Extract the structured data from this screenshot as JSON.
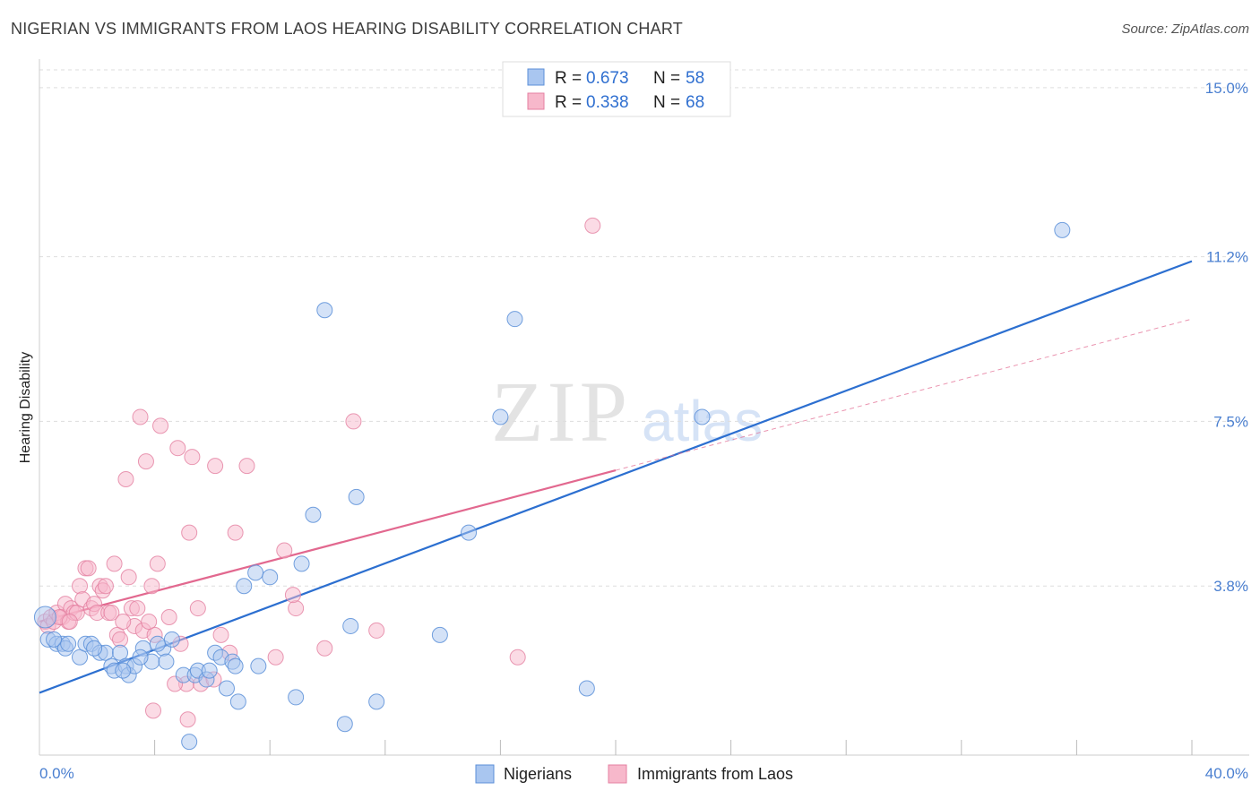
{
  "title": "NIGERIAN VS IMMIGRANTS FROM LAOS HEARING DISABILITY CORRELATION CHART",
  "source": "Source: ZipAtlas.com",
  "watermark": {
    "zip": "ZIP",
    "atlas": "atlas"
  },
  "legend_top": [
    {
      "r_label": "R = ",
      "r_value": "0.673",
      "n_label": "N = ",
      "n_value": "58"
    },
    {
      "r_label": "R = ",
      "r_value": "0.338",
      "n_label": "N = ",
      "n_value": "68"
    }
  ],
  "colors": {
    "blue_fill": "#a9c6f0",
    "blue_stroke": "#5b8fd8",
    "blue_line": "#2c6fd0",
    "pink_fill": "#f7b8cb",
    "pink_stroke": "#e47fa0",
    "pink_line": "#e2688f",
    "grid": "#dddddd",
    "tick": "#4a7fd0"
  },
  "chart_data": {
    "type": "scatter",
    "title": "NIGERIAN VS IMMIGRANTS FROM LAOS HEARING DISABILITY CORRELATION CHART",
    "xlabel": "",
    "ylabel": "Hearing Disability",
    "xlim": [
      0,
      40
    ],
    "ylim": [
      0,
      15.4
    ],
    "x_tick_labels": [
      "0.0%",
      "40.0%"
    ],
    "y_ticks": [
      3.8,
      7.5,
      11.2,
      15.0
    ],
    "y_tick_labels": [
      "3.8%",
      "7.5%",
      "11.2%",
      "15.0%"
    ],
    "series": [
      {
        "name": "Nigerians",
        "r": 0.673,
        "n": 58,
        "trend": {
          "x": [
            0,
            40
          ],
          "y": [
            1.4,
            11.1
          ],
          "solid_to": 40
        },
        "points": [
          [
            0.2,
            3.1
          ],
          [
            0.3,
            2.6
          ],
          [
            0.6,
            2.5
          ],
          [
            0.8,
            2.5
          ],
          [
            0.9,
            2.4
          ],
          [
            1.4,
            2.2
          ],
          [
            1.6,
            2.5
          ],
          [
            1.8,
            2.5
          ],
          [
            2.1,
            2.3
          ],
          [
            2.3,
            2.3
          ],
          [
            2.5,
            2.0
          ],
          [
            2.6,
            1.9
          ],
          [
            2.8,
            2.3
          ],
          [
            3.0,
            2.0
          ],
          [
            3.1,
            1.8
          ],
          [
            3.3,
            2.0
          ],
          [
            3.6,
            2.4
          ],
          [
            3.9,
            2.1
          ],
          [
            4.3,
            2.4
          ],
          [
            4.4,
            2.1
          ],
          [
            4.6,
            2.6
          ],
          [
            5.0,
            1.8
          ],
          [
            5.2,
            0.3
          ],
          [
            5.4,
            1.8
          ],
          [
            5.5,
            1.9
          ],
          [
            5.8,
            1.7
          ],
          [
            6.1,
            2.3
          ],
          [
            6.3,
            2.2
          ],
          [
            6.5,
            1.5
          ],
          [
            6.7,
            2.1
          ],
          [
            6.8,
            2.0
          ],
          [
            6.9,
            1.2
          ],
          [
            7.1,
            3.8
          ],
          [
            7.5,
            4.1
          ],
          [
            7.6,
            2.0
          ],
          [
            8.0,
            4.0
          ],
          [
            8.9,
            1.3
          ],
          [
            9.1,
            4.3
          ],
          [
            9.5,
            5.4
          ],
          [
            9.9,
            10.0
          ],
          [
            10.6,
            0.7
          ],
          [
            10.8,
            2.9
          ],
          [
            11.0,
            5.8
          ],
          [
            11.7,
            1.2
          ],
          [
            13.9,
            2.7
          ],
          [
            14.9,
            5.0
          ],
          [
            16.0,
            7.6
          ],
          [
            16.5,
            9.8
          ],
          [
            19.0,
            1.5
          ],
          [
            23.0,
            7.6
          ],
          [
            35.5,
            11.8
          ],
          [
            0.5,
            2.6
          ],
          [
            1.0,
            2.5
          ],
          [
            1.9,
            2.4
          ],
          [
            3.5,
            2.2
          ],
          [
            4.1,
            2.5
          ],
          [
            5.9,
            1.9
          ],
          [
            2.9,
            1.9
          ]
        ]
      },
      {
        "name": "Immigrants from Laos",
        "r": 0.338,
        "n": 68,
        "trend": {
          "x": [
            0,
            40
          ],
          "y": [
            3.0,
            9.8
          ],
          "solid_to": 20
        },
        "points": [
          [
            0.2,
            3.0
          ],
          [
            0.3,
            2.9
          ],
          [
            0.4,
            3.1
          ],
          [
            0.5,
            3.0
          ],
          [
            0.6,
            3.2
          ],
          [
            0.8,
            3.1
          ],
          [
            0.9,
            3.4
          ],
          [
            1.0,
            3.0
          ],
          [
            1.1,
            3.3
          ],
          [
            1.2,
            3.2
          ],
          [
            1.3,
            3.2
          ],
          [
            1.4,
            3.8
          ],
          [
            1.5,
            3.5
          ],
          [
            1.6,
            4.2
          ],
          [
            1.7,
            4.2
          ],
          [
            1.8,
            3.3
          ],
          [
            1.9,
            3.4
          ],
          [
            2.0,
            3.2
          ],
          [
            2.1,
            3.8
          ],
          [
            2.2,
            3.7
          ],
          [
            2.3,
            3.8
          ],
          [
            2.4,
            3.2
          ],
          [
            2.5,
            3.2
          ],
          [
            2.6,
            4.3
          ],
          [
            2.7,
            2.7
          ],
          [
            2.8,
            2.6
          ],
          [
            3.0,
            6.2
          ],
          [
            3.1,
            4.0
          ],
          [
            3.2,
            3.3
          ],
          [
            3.3,
            2.9
          ],
          [
            3.4,
            3.3
          ],
          [
            3.5,
            7.6
          ],
          [
            3.6,
            2.8
          ],
          [
            3.7,
            6.6
          ],
          [
            3.9,
            3.8
          ],
          [
            4.0,
            2.7
          ],
          [
            4.1,
            4.3
          ],
          [
            4.2,
            7.4
          ],
          [
            4.5,
            3.1
          ],
          [
            4.8,
            6.9
          ],
          [
            4.9,
            2.5
          ],
          [
            5.1,
            1.6
          ],
          [
            5.2,
            5.0
          ],
          [
            5.3,
            6.7
          ],
          [
            5.5,
            3.3
          ],
          [
            5.6,
            1.6
          ],
          [
            6.1,
            6.5
          ],
          [
            6.3,
            2.7
          ],
          [
            6.6,
            2.3
          ],
          [
            6.8,
            5.0
          ],
          [
            7.2,
            6.5
          ],
          [
            8.2,
            2.2
          ],
          [
            8.5,
            4.6
          ],
          [
            8.9,
            3.3
          ],
          [
            9.9,
            2.4
          ],
          [
            10.9,
            7.5
          ],
          [
            11.7,
            2.8
          ],
          [
            16.6,
            2.2
          ],
          [
            19.2,
            11.9
          ],
          [
            4.7,
            1.6
          ],
          [
            0.7,
            3.1
          ],
          [
            1.05,
            3.0
          ],
          [
            3.8,
            3.0
          ],
          [
            3.95,
            1.0
          ],
          [
            5.15,
            0.8
          ],
          [
            6.05,
            1.7
          ],
          [
            2.9,
            3.0
          ],
          [
            8.8,
            3.6
          ]
        ]
      }
    ]
  },
  "bottom_legend": [
    "Nigerians",
    "Immigrants from Laos"
  ]
}
